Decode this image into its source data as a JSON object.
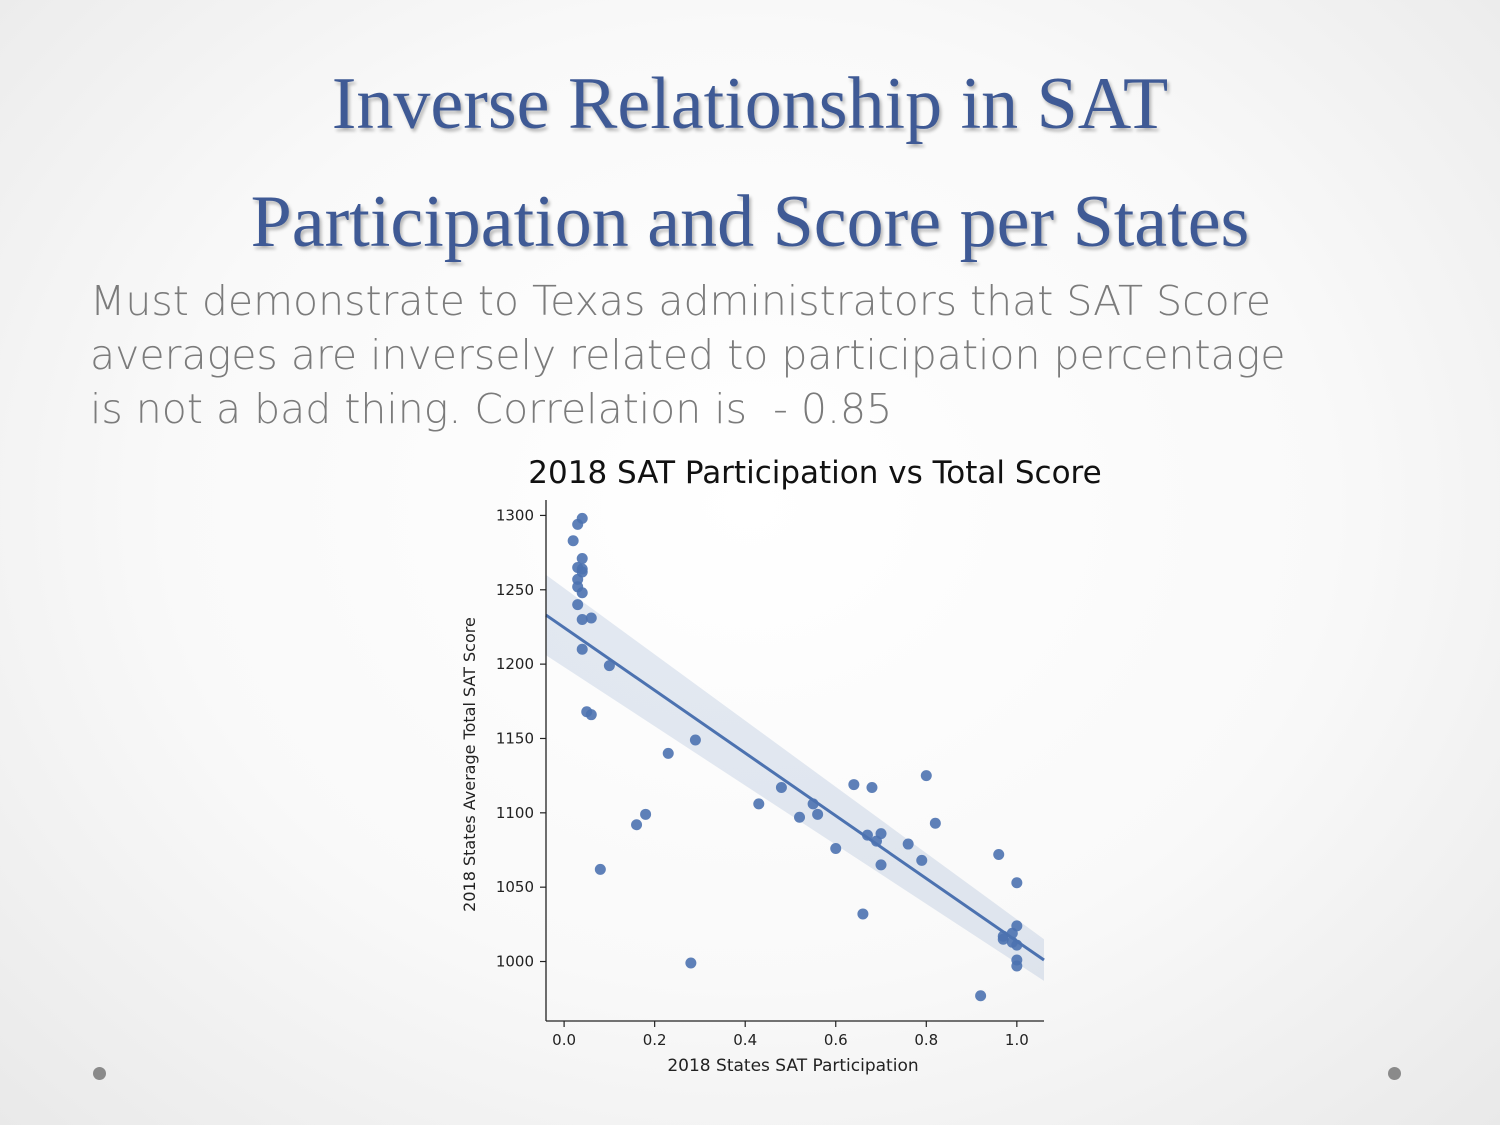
{
  "slide": {
    "title_line1": "Inverse Relationship in SAT",
    "title_line2": "Participation and Score per States",
    "body_line1": "Must demonstrate to Texas administrators that SAT Score",
    "body_line2": "averages are inversely related to participation percentage",
    "body_line3": "is not a bad thing. Correlation is  - 0.85",
    "title_color": "#3f5a95",
    "text_color": "#7b7b7b"
  },
  "chart_data": {
    "type": "scatter",
    "title": "2018 SAT Participation vs Total Score",
    "xlabel": "2018 States SAT Participation",
    "ylabel": "2018 States Average Total SAT Score",
    "xlim": [
      -0.04,
      1.06
    ],
    "ylim": [
      960,
      1305
    ],
    "xticks": [
      0.0,
      0.2,
      0.4,
      0.6,
      0.8,
      1.0
    ],
    "xtick_labels": [
      "0.0",
      "0.2",
      "0.4",
      "0.6",
      "0.8",
      "1.0"
    ],
    "yticks": [
      1000,
      1050,
      1100,
      1150,
      1200,
      1250,
      1300
    ],
    "ytick_labels": [
      "1000",
      "1050",
      "1100",
      "1150",
      "1200",
      "1250",
      "1300"
    ],
    "grid": false,
    "point_color": "#4c72b0",
    "regression": {
      "x": [
        -0.04,
        1.06
      ],
      "y": [
        1233,
        1001
      ],
      "ci_upper": [
        1260,
        1015
      ],
      "ci_lower": [
        1206,
        987
      ]
    },
    "points": [
      {
        "x": 0.02,
        "y": 1283
      },
      {
        "x": 0.03,
        "y": 1294
      },
      {
        "x": 0.04,
        "y": 1298
      },
      {
        "x": 0.04,
        "y": 1271
      },
      {
        "x": 0.03,
        "y": 1265
      },
      {
        "x": 0.04,
        "y": 1264
      },
      {
        "x": 0.04,
        "y": 1262
      },
      {
        "x": 0.03,
        "y": 1257
      },
      {
        "x": 0.03,
        "y": 1252
      },
      {
        "x": 0.04,
        "y": 1248
      },
      {
        "x": 0.03,
        "y": 1240
      },
      {
        "x": 0.04,
        "y": 1230
      },
      {
        "x": 0.06,
        "y": 1231
      },
      {
        "x": 0.04,
        "y": 1210
      },
      {
        "x": 0.1,
        "y": 1199
      },
      {
        "x": 0.05,
        "y": 1168
      },
      {
        "x": 0.06,
        "y": 1166
      },
      {
        "x": 0.08,
        "y": 1062
      },
      {
        "x": 0.16,
        "y": 1092
      },
      {
        "x": 0.18,
        "y": 1099
      },
      {
        "x": 0.23,
        "y": 1140
      },
      {
        "x": 0.28,
        "y": 999
      },
      {
        "x": 0.29,
        "y": 1149
      },
      {
        "x": 0.43,
        "y": 1106
      },
      {
        "x": 0.48,
        "y": 1117
      },
      {
        "x": 0.52,
        "y": 1097
      },
      {
        "x": 0.55,
        "y": 1106
      },
      {
        "x": 0.56,
        "y": 1099
      },
      {
        "x": 0.6,
        "y": 1076
      },
      {
        "x": 0.64,
        "y": 1119
      },
      {
        "x": 0.66,
        "y": 1032
      },
      {
        "x": 0.67,
        "y": 1085
      },
      {
        "x": 0.68,
        "y": 1117
      },
      {
        "x": 0.69,
        "y": 1081
      },
      {
        "x": 0.7,
        "y": 1086
      },
      {
        "x": 0.7,
        "y": 1065
      },
      {
        "x": 0.76,
        "y": 1079
      },
      {
        "x": 0.79,
        "y": 1068
      },
      {
        "x": 0.8,
        "y": 1125
      },
      {
        "x": 0.82,
        "y": 1093
      },
      {
        "x": 0.92,
        "y": 977
      },
      {
        "x": 0.96,
        "y": 1072
      },
      {
        "x": 0.97,
        "y": 1017
      },
      {
        "x": 0.97,
        "y": 1015
      },
      {
        "x": 0.99,
        "y": 1019
      },
      {
        "x": 0.99,
        "y": 1013
      },
      {
        "x": 1.0,
        "y": 1024
      },
      {
        "x": 1.0,
        "y": 1053
      },
      {
        "x": 1.0,
        "y": 1011
      },
      {
        "x": 1.0,
        "y": 1001
      },
      {
        "x": 1.0,
        "y": 997
      }
    ]
  }
}
